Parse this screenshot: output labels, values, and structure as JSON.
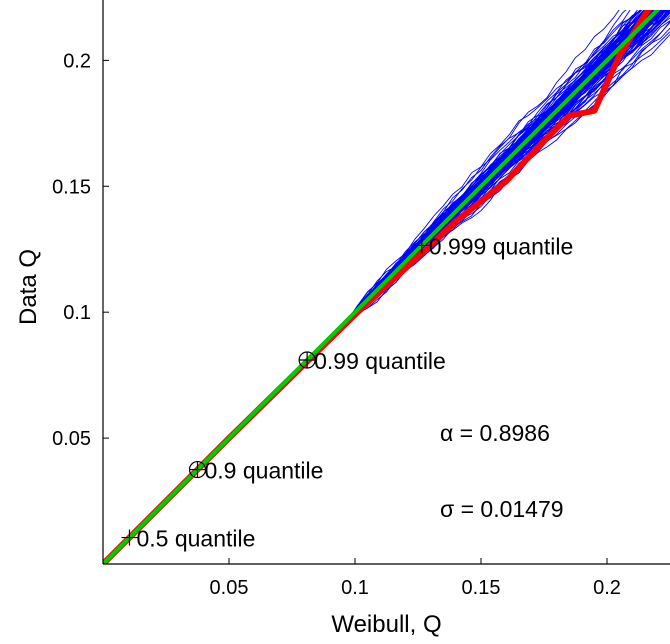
{
  "chart_data": {
    "type": "line",
    "title": "",
    "xlabel": "Weibull, Q",
    "ylabel": "Data Q",
    "xlim": [
      0.0,
      0.225
    ],
    "ylim": [
      0.0,
      0.22
    ],
    "xticks": [
      0.05,
      0.1,
      0.15,
      0.2
    ],
    "xtick_labels": [
      "0.05",
      "0.1",
      "0.15",
      "0.2"
    ],
    "yticks": [
      0.05,
      0.1,
      0.15,
      0.2
    ],
    "ytick_labels": [
      "0.05",
      "0.1",
      "0.15",
      "0.2"
    ],
    "grid": false,
    "legend": "none",
    "series": [
      {
        "role": "simulated-envelope",
        "color": "#0000ff",
        "count": 100,
        "note_spread_start": 0.1,
        "x": [
          0.0,
          0.05,
          0.1,
          0.125,
          0.15,
          0.175,
          0.2,
          0.225
        ],
        "y": [
          0.0,
          0.05,
          0.1,
          0.125,
          0.15,
          0.175,
          0.2,
          0.225
        ]
      },
      {
        "role": "data",
        "color": "#ff0000",
        "x": [
          0.0,
          0.05,
          0.1,
          0.125,
          0.14,
          0.16,
          0.175,
          0.185,
          0.195,
          0.205,
          0.215,
          0.225
        ],
        "y": [
          0.0,
          0.05,
          0.099,
          0.122,
          0.136,
          0.152,
          0.168,
          0.178,
          0.18,
          0.202,
          0.218,
          0.232
        ]
      },
      {
        "role": "reference",
        "color": "#00cc00",
        "x": [
          0.0,
          0.225
        ],
        "y": [
          0.0,
          0.225
        ]
      }
    ],
    "quantile_markers": [
      {
        "label": "0.5 quantile",
        "x": 0.0105,
        "y": 0.0105,
        "marker": "plus"
      },
      {
        "label": "0.9 quantile",
        "x": 0.0375,
        "y": 0.0375,
        "marker": "circle-plus"
      },
      {
        "label": "0.99 quantile",
        "x": 0.081,
        "y": 0.081,
        "marker": "circle-plus"
      },
      {
        "label": "0.999 quantile",
        "x": 0.1265,
        "y": 0.1265,
        "marker": "plus"
      }
    ],
    "parameters": {
      "alpha_text": "α = 0.8986",
      "sigma_text": "σ = 0.01479"
    }
  }
}
